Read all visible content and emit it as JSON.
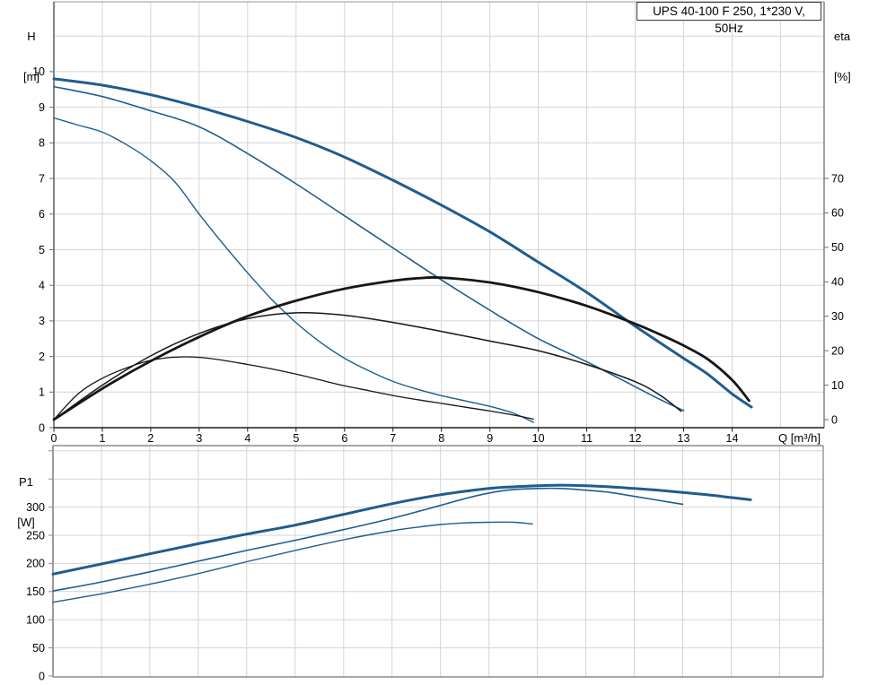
{
  "title_box": {
    "label": "UPS 40-100 F 250, 1*230 V, 50Hz"
  },
  "axis_headers": {
    "head_h_line1": "H",
    "head_h_line2": "[m]",
    "head_eta_line1": "eta",
    "head_eta_line2": "[%]",
    "head_p1_line1": "P1",
    "head_p1_line2": "[W]",
    "x_unit_label": "Q [m³/h]"
  },
  "colors": {
    "curve_blue": "#1f5c8f",
    "curve_black": "#161616",
    "grid": "#d4d4d4",
    "axis_gray": "#6e6e6e",
    "axis_light": "#9a9a9a",
    "axis_dark": "#1a1a1a",
    "border_bottom_chart": "#8a8a8a",
    "text": "#000000",
    "background": "#ffffff"
  },
  "chart_data": [
    {
      "id": "head-efficiency-chart",
      "type": "line",
      "title": "UPS 40-100 F 250, 1*230 V, 50Hz",
      "grid": true,
      "legend": "none",
      "x_axis": {
        "label": "Q [m³/h]",
        "min": 0,
        "max": 15.9,
        "tick_labels": [
          0,
          1,
          2,
          3,
          4,
          5,
          6,
          7,
          8,
          9,
          10,
          11,
          12,
          13,
          14
        ]
      },
      "y_left": {
        "label": "H [m]",
        "min": 0,
        "max": 11.97,
        "tick_labels": [
          0,
          1,
          2,
          3,
          4,
          5,
          6,
          7,
          8,
          9,
          10
        ]
      },
      "y_right": {
        "label": "eta [%]",
        "min": 0,
        "max": 70,
        "tick_labels": [
          0,
          10,
          20,
          30,
          40,
          50,
          60,
          70
        ]
      },
      "series": [
        {
          "name": "head-max-speed",
          "axis": "left",
          "color": "#1f5c8f",
          "width": 3,
          "points": [
            [
              0,
              9.8
            ],
            [
              1,
              9.62
            ],
            [
              2,
              9.35
            ],
            [
              3,
              9.0
            ],
            [
              4,
              8.6
            ],
            [
              5,
              8.15
            ],
            [
              6,
              7.6
            ],
            [
              7,
              6.95
            ],
            [
              8,
              6.25
            ],
            [
              9,
              5.5
            ],
            [
              10,
              4.65
            ],
            [
              11,
              3.8
            ],
            [
              12,
              2.85
            ],
            [
              13,
              1.95
            ],
            [
              13.5,
              1.5
            ],
            [
              14,
              0.95
            ],
            [
              14.4,
              0.58
            ]
          ]
        },
        {
          "name": "head-mid-speed",
          "axis": "left",
          "color": "#1f5c8f",
          "width": 1.6,
          "points": [
            [
              0,
              9.58
            ],
            [
              1,
              9.3
            ],
            [
              2,
              8.9
            ],
            [
              3,
              8.45
            ],
            [
              4,
              7.7
            ],
            [
              5,
              6.85
            ],
            [
              6,
              5.95
            ],
            [
              7,
              5.05
            ],
            [
              8,
              4.15
            ],
            [
              9,
              3.3
            ],
            [
              10,
              2.5
            ],
            [
              11,
              1.85
            ],
            [
              12,
              1.15
            ],
            [
              12.5,
              0.8
            ],
            [
              13,
              0.48
            ]
          ]
        },
        {
          "name": "head-min-speed",
          "axis": "left",
          "color": "#1f5c8f",
          "width": 1.4,
          "points": [
            [
              0,
              8.7
            ],
            [
              0.5,
              8.5
            ],
            [
              1,
              8.3
            ],
            [
              1.5,
              7.95
            ],
            [
              2,
              7.5
            ],
            [
              2.5,
              6.9
            ],
            [
              3,
              6.0
            ],
            [
              3.5,
              5.15
            ],
            [
              4,
              4.35
            ],
            [
              4.5,
              3.6
            ],
            [
              5,
              2.95
            ],
            [
              5.5,
              2.4
            ],
            [
              6,
              1.95
            ],
            [
              6.5,
              1.6
            ],
            [
              7,
              1.3
            ],
            [
              7.5,
              1.08
            ],
            [
              8,
              0.9
            ],
            [
              8.5,
              0.75
            ],
            [
              9,
              0.6
            ],
            [
              9.5,
              0.4
            ],
            [
              9.9,
              0.15
            ]
          ]
        },
        {
          "name": "eta-max-speed",
          "axis": "right",
          "color": "#161616",
          "width": 2.8,
          "points": [
            [
              0,
              0
            ],
            [
              1,
              9
            ],
            [
              2,
              17
            ],
            [
              3,
              24
            ],
            [
              4,
              30
            ],
            [
              5,
              34.5
            ],
            [
              6,
              38
            ],
            [
              7,
              40.3
            ],
            [
              7.5,
              41
            ],
            [
              8,
              41.2
            ],
            [
              9,
              39.8
            ],
            [
              10,
              37
            ],
            [
              11,
              33
            ],
            [
              12,
              27.8
            ],
            [
              12.5,
              24.8
            ],
            [
              13,
              21.5
            ],
            [
              13.5,
              17.5
            ],
            [
              14,
              11.5
            ],
            [
              14.35,
              5.5
            ]
          ]
        },
        {
          "name": "eta-mid-speed",
          "axis": "right",
          "color": "#161616",
          "width": 1.5,
          "points": [
            [
              0,
              0
            ],
            [
              1,
              10
            ],
            [
              2,
              18.5
            ],
            [
              3,
              25
            ],
            [
              4,
              29.3
            ],
            [
              5,
              31
            ],
            [
              6,
              30.3
            ],
            [
              7,
              28.2
            ],
            [
              8,
              25.6
            ],
            [
              9,
              22.8
            ],
            [
              10,
              20
            ],
            [
              11,
              16
            ],
            [
              12,
              11
            ],
            [
              12.5,
              7.2
            ],
            [
              12.95,
              2.4
            ]
          ]
        },
        {
          "name": "eta-min-speed",
          "axis": "right",
          "color": "#161616",
          "width": 1.3,
          "points": [
            [
              0,
              0
            ],
            [
              0.5,
              7.5
            ],
            [
              1,
              12
            ],
            [
              1.5,
              15
            ],
            [
              2,
              17.2
            ],
            [
              2.6,
              18.2
            ],
            [
              3.2,
              17.8
            ],
            [
              4,
              16
            ],
            [
              4.5,
              14.7
            ],
            [
              5,
              13.2
            ],
            [
              5.5,
              11.5
            ],
            [
              6,
              9.8
            ],
            [
              6.5,
              8.4
            ],
            [
              7,
              7.0
            ],
            [
              7.5,
              5.8
            ],
            [
              8,
              4.7
            ],
            [
              8.5,
              3.6
            ],
            [
              9,
              2.5
            ],
            [
              9.5,
              1.3
            ],
            [
              9.9,
              0.15
            ]
          ]
        }
      ]
    },
    {
      "id": "power-chart",
      "type": "line",
      "title": "",
      "grid": true,
      "legend": "none",
      "x_axis": {
        "label": "Q [m³/h]",
        "min": 0,
        "max": 15.9,
        "tick_labels": []
      },
      "y_left": {
        "label": "P1 [W]",
        "min": 0,
        "max": 410,
        "tick_labels": [
          0,
          50,
          100,
          150,
          200,
          250,
          300
        ],
        "tick_marks": [
          0,
          50,
          100,
          150,
          200,
          250,
          300,
          350,
          400
        ]
      },
      "series": [
        {
          "name": "p1-max-speed",
          "axis": "left",
          "color": "#1f5c8f",
          "width": 3,
          "points": [
            [
              0,
              181
            ],
            [
              1,
              199
            ],
            [
              2,
              217
            ],
            [
              3,
              235
            ],
            [
              4,
              252
            ],
            [
              5,
              268
            ],
            [
              6,
              287
            ],
            [
              7,
              306
            ],
            [
              8,
              322
            ],
            [
              9,
              333
            ],
            [
              9.5,
              336
            ],
            [
              10,
              338
            ],
            [
              10.5,
              339
            ],
            [
              11,
              338
            ],
            [
              11.5,
              336
            ],
            [
              12,
              333
            ],
            [
              12.5,
              330
            ],
            [
              13,
              326
            ],
            [
              13.5,
              322
            ],
            [
              14,
              317
            ],
            [
              14.4,
              313
            ]
          ]
        },
        {
          "name": "p1-mid-speed",
          "axis": "left",
          "color": "#1f5c8f",
          "width": 1.6,
          "points": [
            [
              0,
              151
            ],
            [
              1,
              167
            ],
            [
              2,
              185
            ],
            [
              3,
              204
            ],
            [
              4,
              223
            ],
            [
              5,
              241
            ],
            [
              6,
              260
            ],
            [
              7,
              280
            ],
            [
              8,
              303
            ],
            [
              8.5,
              315
            ],
            [
              9,
              325
            ],
            [
              9.5,
              331
            ],
            [
              10,
              333
            ],
            [
              10.5,
              333
            ],
            [
              11,
              330
            ],
            [
              11.5,
              326
            ],
            [
              12,
              319
            ],
            [
              12.5,
              312
            ],
            [
              13,
              305
            ]
          ]
        },
        {
          "name": "p1-min-speed",
          "axis": "left",
          "color": "#1f5c8f",
          "width": 1.4,
          "points": [
            [
              0,
              131
            ],
            [
              1,
              146
            ],
            [
              2,
              163
            ],
            [
              3,
              182
            ],
            [
              4,
              203
            ],
            [
              5,
              223
            ],
            [
              6,
              242
            ],
            [
              7,
              258
            ],
            [
              7.5,
              264
            ],
            [
              8,
              269
            ],
            [
              8.5,
              272
            ],
            [
              9,
              273
            ],
            [
              9.5,
              273
            ],
            [
              9.9,
              270
            ]
          ]
        }
      ]
    }
  ]
}
